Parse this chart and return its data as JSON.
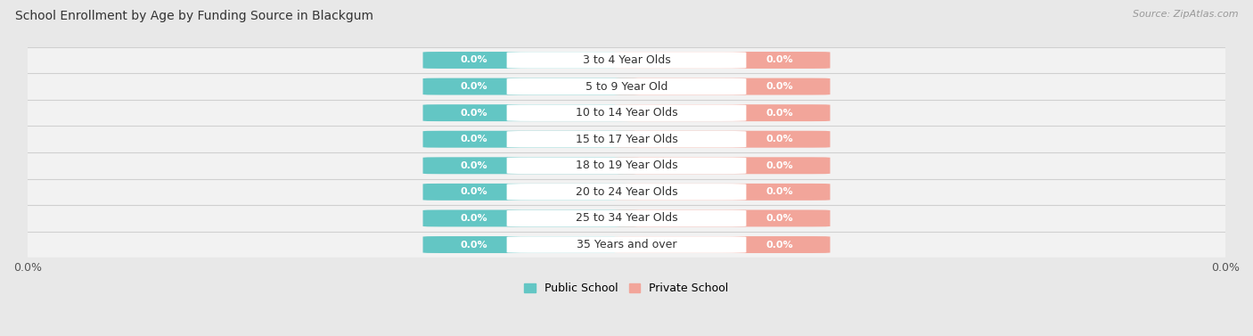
{
  "title": "School Enrollment by Age by Funding Source in Blackgum",
  "source": "Source: ZipAtlas.com",
  "categories": [
    "3 to 4 Year Olds",
    "5 to 9 Year Old",
    "10 to 14 Year Olds",
    "15 to 17 Year Olds",
    "18 to 19 Year Olds",
    "20 to 24 Year Olds",
    "25 to 34 Year Olds",
    "35 Years and over"
  ],
  "public_values": [
    0.0,
    0.0,
    0.0,
    0.0,
    0.0,
    0.0,
    0.0,
    0.0
  ],
  "private_values": [
    0.0,
    0.0,
    0.0,
    0.0,
    0.0,
    0.0,
    0.0,
    0.0
  ],
  "public_color": "#63c6c4",
  "private_color": "#f2a59a",
  "bg_color": "#e8e8e8",
  "row_bg": "#f2f2f2",
  "separator_color": "#d0d0d0",
  "title_fontsize": 10,
  "label_fontsize": 9,
  "value_fontsize": 8,
  "legend_fontsize": 9,
  "axis_label": "0.0%",
  "pub_bar_label": "0.0%",
  "priv_bar_label": "0.0%",
  "pub_legend": "Public School",
  "priv_legend": "Private School"
}
